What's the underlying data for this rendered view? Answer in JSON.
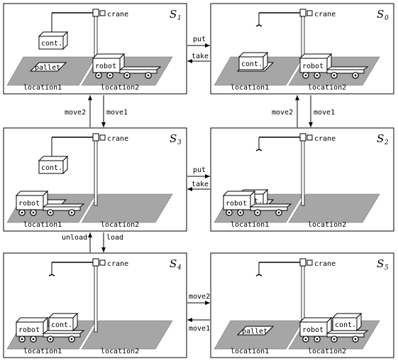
{
  "labels": {
    "crane": "crane",
    "robot": "robot",
    "container": "cont.",
    "pallet": "pallet",
    "location1": "location1",
    "location2": "location2"
  },
  "states": [
    {
      "id": "s1",
      "name": "S",
      "sub": "1",
      "container": "crane",
      "robot": "location2",
      "robot_loaded": false,
      "pallet_empty": true
    },
    {
      "id": "s0",
      "name": "S",
      "sub": "0",
      "container": "pallet",
      "robot": "location2",
      "robot_loaded": false,
      "pallet_empty": false
    },
    {
      "id": "s3",
      "name": "S",
      "sub": "3",
      "container": "crane",
      "robot": "location1",
      "robot_loaded": false,
      "pallet_empty": false
    },
    {
      "id": "s2",
      "name": "S",
      "sub": "2",
      "container": "pallet",
      "robot": "location1",
      "robot_loaded": false,
      "pallet_empty": false
    },
    {
      "id": "s4",
      "name": "S",
      "sub": "4",
      "container": "robot",
      "robot": "location1",
      "robot_loaded": true,
      "pallet_empty": false
    },
    {
      "id": "s5",
      "name": "S",
      "sub": "5",
      "container": "robot",
      "robot": "location2",
      "robot_loaded": true,
      "pallet_empty": true
    }
  ],
  "transitions": [
    {
      "id": "t-put-1",
      "label": "put"
    },
    {
      "id": "t-take-1",
      "label": "take"
    },
    {
      "id": "t-move2-1",
      "label": "move2"
    },
    {
      "id": "t-move1-1",
      "label": "move1"
    },
    {
      "id": "t-move2-2",
      "label": "move2"
    },
    {
      "id": "t-move1-2",
      "label": "move1"
    },
    {
      "id": "t-put-2",
      "label": "put"
    },
    {
      "id": "t-take-2",
      "label": "take"
    },
    {
      "id": "t-unload",
      "label": "unload"
    },
    {
      "id": "t-load",
      "label": "load"
    },
    {
      "id": "t-move2-3",
      "label": "move2"
    },
    {
      "id": "t-move1-3",
      "label": "move1"
    }
  ]
}
